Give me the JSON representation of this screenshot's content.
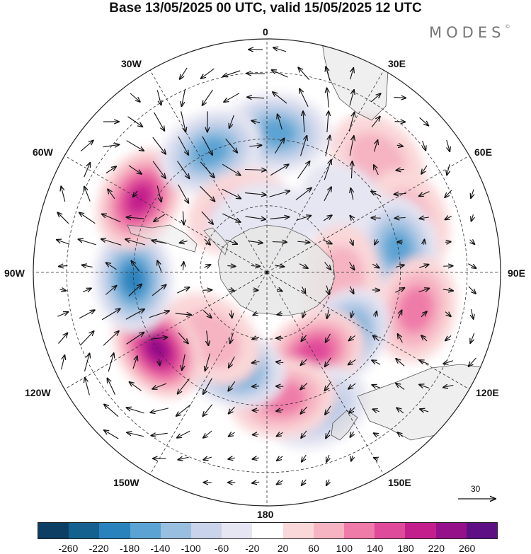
{
  "title": "Base 13/05/2025 00 UTC, valid 15/05/2025 12 UTC",
  "brand": {
    "name": "MODES",
    "mark": "©"
  },
  "longitude_labels": {
    "top": "0",
    "30E": "30E",
    "60E": "60E",
    "90E": "90E",
    "120E": "120E",
    "150E": "150E",
    "bottom": "180",
    "150W": "150W",
    "120W": "120W",
    "90W": "90W",
    "60W": "60W",
    "30W": "30W"
  },
  "reference_vector": {
    "label": "30"
  },
  "colorbar": {
    "colors": [
      "#0c3f63",
      "#14608f",
      "#2a82bd",
      "#5ba3d3",
      "#99bfe0",
      "#c9d3ea",
      "#e6e6f2",
      "#ffffff",
      "#fad7d8",
      "#f6b4c2",
      "#ef7ba8",
      "#e04a9a",
      "#c21f8c",
      "#95118a",
      "#5e0f84"
    ],
    "ticks": [
      "-260",
      "-220",
      "-180",
      "-140",
      "-100",
      "-60",
      "-20",
      "20",
      "60",
      "100",
      "140",
      "180",
      "220",
      "260"
    ]
  },
  "anomalies": [
    {
      "lon": 4,
      "lat": -48,
      "value": -160
    },
    {
      "lon": 45,
      "lat": -43,
      "value": 90
    },
    {
      "lon": 70,
      "lat": -45,
      "value": 60
    },
    {
      "lon": 52,
      "lat": -60,
      "value": -30
    },
    {
      "lon": 80,
      "lat": -50,
      "value": -170
    },
    {
      "lon": 95,
      "lat": -68,
      "value": 80
    },
    {
      "lon": 104,
      "lat": -44,
      "value": 120
    },
    {
      "lon": 130,
      "lat": -60,
      "value": -180
    },
    {
      "lon": 150,
      "lat": -62,
      "value": 160
    },
    {
      "lon": 160,
      "lat": -47,
      "value": -120
    },
    {
      "lon": 173,
      "lat": -52,
      "value": 130
    },
    {
      "lon": -160,
      "lat": -60,
      "value": -200
    },
    {
      "lon": -140,
      "lat": -64,
      "value": 60
    },
    {
      "lon": -125,
      "lat": -50,
      "value": 240
    },
    {
      "lon": -93,
      "lat": -50,
      "value": -210
    },
    {
      "lon": -60,
      "lat": -46,
      "value": 200
    },
    {
      "lon": -25,
      "lat": -50,
      "value": -150
    },
    {
      "lon": -25,
      "lat": -70,
      "value": 60
    },
    {
      "lon": -5,
      "lat": -75,
      "value": -40
    }
  ]
}
